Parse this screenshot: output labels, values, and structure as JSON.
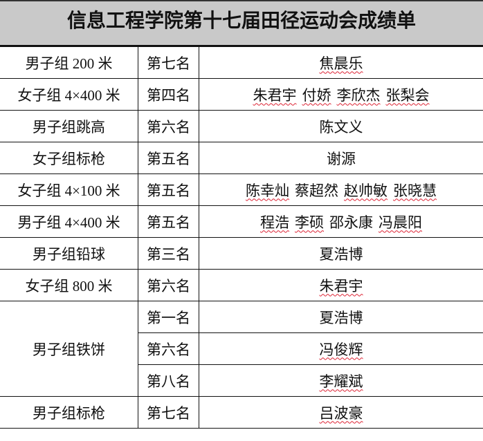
{
  "title": "信息工程学院第十七届田径运动会成绩单",
  "rows": [
    {
      "event": "男子组 200 米",
      "placements": [
        {
          "rank": "第七名",
          "names": [
            {
              "text": "焦晨乐",
              "flagged": true
            }
          ]
        }
      ]
    },
    {
      "event": "女子组 4×400 米",
      "placements": [
        {
          "rank": "第四名",
          "names": [
            {
              "text": "朱君宇",
              "flagged": true
            },
            {
              "text": "付娇",
              "flagged": true
            },
            {
              "text": "李欣杰",
              "flagged": true
            },
            {
              "text": "张梨会",
              "flagged": true
            }
          ]
        }
      ]
    },
    {
      "event": "男子组跳高",
      "placements": [
        {
          "rank": "第六名",
          "names": [
            {
              "text": "陈文义",
              "flagged": false
            }
          ]
        }
      ]
    },
    {
      "event": "女子组标枪",
      "placements": [
        {
          "rank": "第五名",
          "names": [
            {
              "text": "谢源",
              "flagged": false
            }
          ]
        }
      ]
    },
    {
      "event": "女子组 4×100 米",
      "placements": [
        {
          "rank": "第五名",
          "names": [
            {
              "text": "陈幸灿",
              "flagged": true
            },
            {
              "text": "蔡超然",
              "flagged": false
            },
            {
              "text": "赵帅敏",
              "flagged": true
            },
            {
              "text": "张晓慧",
              "flagged": true
            }
          ]
        }
      ]
    },
    {
      "event": "男子组 4×400 米",
      "placements": [
        {
          "rank": "第五名",
          "names": [
            {
              "text": "程浩",
              "flagged": true
            },
            {
              "text": "李硕",
              "flagged": true
            },
            {
              "text": "邵永康",
              "flagged": false
            },
            {
              "text": "冯晨阳",
              "flagged": true
            }
          ]
        }
      ]
    },
    {
      "event": "男子组铅球",
      "placements": [
        {
          "rank": "第三名",
          "names": [
            {
              "text": "夏浩博",
              "flagged": false
            }
          ]
        }
      ]
    },
    {
      "event": "女子组 800 米",
      "placements": [
        {
          "rank": "第六名",
          "names": [
            {
              "text": "朱君宇",
              "flagged": true
            }
          ]
        }
      ]
    },
    {
      "event": "男子组铁饼",
      "placements": [
        {
          "rank": "第一名",
          "names": [
            {
              "text": "夏浩博",
              "flagged": false
            }
          ]
        },
        {
          "rank": "第六名",
          "names": [
            {
              "text": "冯俊辉",
              "flagged": true
            }
          ]
        },
        {
          "rank": "第八名",
          "names": [
            {
              "text": "李耀斌",
              "flagged": true
            }
          ]
        }
      ]
    },
    {
      "event": "男子组标枪",
      "placements": [
        {
          "rank": "第七名",
          "names": [
            {
              "text": "吕波豪",
              "flagged": true
            }
          ]
        }
      ]
    }
  ]
}
